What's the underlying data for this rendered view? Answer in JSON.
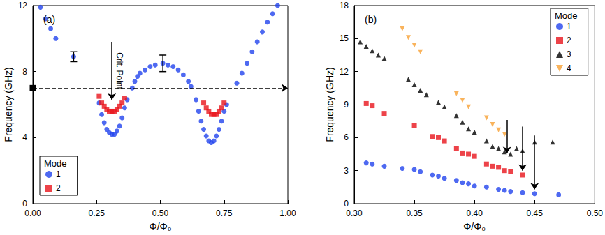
{
  "chart_data": [
    {
      "type": "scatter",
      "title": "(a)",
      "x_label": "Φ/Φ₀",
      "y_label": "Frequency (GHz)",
      "xlim": [
        0,
        1
      ],
      "xticks": [
        {
          "value": 0,
          "label": "0.00"
        },
        {
          "value": 0.25,
          "label": "0.25"
        },
        {
          "value": 0.5,
          "label": "0.50"
        },
        {
          "value": 0.75,
          "label": "0.75"
        },
        {
          "value": 1,
          "label": "1.00"
        }
      ],
      "ylim": [
        0,
        12
      ],
      "yticks": [
        0,
        4,
        8,
        12
      ],
      "grid": false,
      "legend": "lower left",
      "legend_title": "Mode",
      "reference_line": {
        "y": 7,
        "line_style": "dashed"
      },
      "arrows": [
        {
          "label": "Crit. Point",
          "x": 0.31,
          "y_start": 9.8,
          "y_end": 6.3
        }
      ],
      "series": [
        {
          "name": "1",
          "color": "#2244ee",
          "marker": "circle",
          "x": [
            0.03,
            0.05,
            0.07,
            0.09,
            0.16,
            0.26,
            0.27,
            0.28,
            0.29,
            0.3,
            0.31,
            0.32,
            0.33,
            0.34,
            0.35,
            0.36,
            0.37,
            0.39,
            0.4,
            0.41,
            0.42,
            0.44,
            0.46,
            0.48,
            0.51,
            0.53,
            0.55,
            0.57,
            0.59,
            0.61,
            0.62,
            0.64,
            0.65,
            0.66,
            0.67,
            0.68,
            0.69,
            0.7,
            0.71,
            0.72,
            0.73,
            0.74,
            0.75,
            0.76,
            0.8,
            0.82,
            0.84,
            0.86,
            0.88,
            0.9,
            0.92,
            0.94,
            0.96
          ],
          "values": [
            11.9,
            11.2,
            10.6,
            10.0,
            8.9,
            6.1,
            5.4,
            4.9,
            4.5,
            4.3,
            4.2,
            4.2,
            4.4,
            4.7,
            5.2,
            5.8,
            6.3,
            7.0,
            7.4,
            7.7,
            7.9,
            8.1,
            8.3,
            8.4,
            8.5,
            8.4,
            8.3,
            8.1,
            7.8,
            7.4,
            7.1,
            6.3,
            5.6,
            5.0,
            4.5,
            4.1,
            3.8,
            3.7,
            3.8,
            4.1,
            4.5,
            5.0,
            5.6,
            6.0,
            7.3,
            7.9,
            8.5,
            9.2,
            9.8,
            10.4,
            11.0,
            11.5,
            12.0
          ],
          "errors": [
            null,
            null,
            null,
            null,
            0.3,
            null,
            null,
            null,
            null,
            null,
            null,
            null,
            null,
            null,
            null,
            null,
            null,
            null,
            null,
            null,
            null,
            null,
            null,
            null,
            0.5,
            null,
            null,
            null,
            null,
            null,
            null,
            null,
            null,
            null,
            null,
            null,
            null,
            null,
            null,
            null,
            null,
            null,
            null,
            null,
            null,
            null,
            null,
            null,
            null,
            null,
            null,
            null,
            null
          ]
        },
        {
          "name": "2",
          "color": "#e8141c",
          "marker": "square",
          "x": [
            0.26,
            0.27,
            0.28,
            0.29,
            0.3,
            0.31,
            0.32,
            0.33,
            0.34,
            0.35,
            0.36,
            0.67,
            0.68,
            0.69,
            0.7,
            0.71,
            0.72,
            0.73,
            0.74,
            0.75
          ],
          "values": [
            6.5,
            6.1,
            5.9,
            5.7,
            5.6,
            5.6,
            5.6,
            5.7,
            5.9,
            6.1,
            6.4,
            6.1,
            5.8,
            5.6,
            5.4,
            5.4,
            5.4,
            5.6,
            5.8,
            6.1
          ]
        }
      ]
    },
    {
      "type": "scatter",
      "title": "(b)",
      "x_label": "Φ/Φ₀",
      "y_label": "Frequency (GHz)",
      "xlim": [
        0.3,
        0.5
      ],
      "xticks": [
        {
          "value": 0.3,
          "label": "0.30"
        },
        {
          "value": 0.35,
          "label": "0.35"
        },
        {
          "value": 0.4,
          "label": "0.40"
        },
        {
          "value": 0.45,
          "label": "0.45"
        },
        {
          "value": 0.5,
          "label": "0.50"
        }
      ],
      "ylim": [
        0,
        18
      ],
      "yticks": [
        0,
        3,
        6,
        9,
        12,
        15,
        18
      ],
      "grid": false,
      "legend": "upper right",
      "legend_title": "Mode",
      "arrows": [
        {
          "x": 0.427,
          "y_start": 7.6,
          "y_end": 4.6
        },
        {
          "x": 0.44,
          "y_start": 7.0,
          "y_end": 3.0
        },
        {
          "x": 0.45,
          "y_start": 6.2,
          "y_end": 1.3
        }
      ],
      "series": [
        {
          "name": "1",
          "color": "#2244ee",
          "marker": "circle",
          "x": [
            0.31,
            0.315,
            0.325,
            0.34,
            0.35,
            0.355,
            0.365,
            0.37,
            0.375,
            0.385,
            0.39,
            0.395,
            0.4,
            0.41,
            0.42,
            0.425,
            0.43,
            0.44,
            0.45,
            0.47
          ],
          "values": [
            3.7,
            3.6,
            3.4,
            3.2,
            3.1,
            2.9,
            2.6,
            2.5,
            2.3,
            2.1,
            1.9,
            1.8,
            1.6,
            1.5,
            1.3,
            1.2,
            1.1,
            1.0,
            0.9,
            0.8
          ]
        },
        {
          "name": "2",
          "color": "#e8141c",
          "marker": "square",
          "x": [
            0.31,
            0.315,
            0.325,
            0.35,
            0.365,
            0.37,
            0.375,
            0.385,
            0.39,
            0.395,
            0.4,
            0.41,
            0.415,
            0.42,
            0.425,
            0.43,
            0.44
          ],
          "values": [
            9.1,
            8.9,
            8.2,
            7.1,
            6.1,
            6.0,
            5.7,
            5.0,
            4.6,
            4.5,
            4.3,
            3.6,
            3.4,
            3.3,
            3.0,
            2.9,
            2.6
          ]
        },
        {
          "name": "3",
          "color": "#000000",
          "marker": "triangle",
          "x": [
            0.305,
            0.31,
            0.315,
            0.32,
            0.325,
            0.345,
            0.35,
            0.355,
            0.36,
            0.37,
            0.375,
            0.385,
            0.39,
            0.395,
            0.4,
            0.41,
            0.415,
            0.42,
            0.425,
            0.43,
            0.435,
            0.44,
            0.45,
            0.465
          ],
          "values": [
            14.7,
            14.3,
            13.9,
            13.5,
            13.2,
            11.3,
            10.8,
            10.3,
            9.9,
            9.2,
            8.8,
            8.0,
            7.4,
            6.8,
            6.5,
            5.7,
            5.2,
            5.0,
            4.7,
            4.5,
            5.0,
            4.8,
            5.6,
            5.6
          ]
        },
        {
          "name": "4",
          "color": "#f7a033",
          "marker": "triangle_down",
          "x": [
            0.34,
            0.345,
            0.35,
            0.355,
            0.385,
            0.39,
            0.395,
            0.41,
            0.415,
            0.42,
            0.425
          ],
          "values": [
            15.9,
            15.1,
            14.4,
            13.8,
            10.0,
            9.4,
            8.8,
            7.8,
            7.2,
            6.7,
            6.3
          ]
        }
      ]
    }
  ]
}
